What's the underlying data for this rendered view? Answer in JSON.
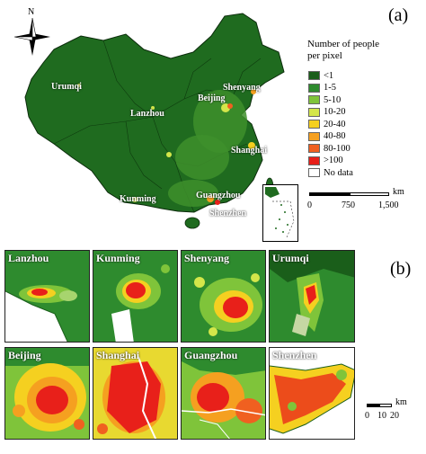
{
  "panels": {
    "a_label": "(a)",
    "b_label": "(b)"
  },
  "north_arrow": {
    "label": "N"
  },
  "legend": {
    "title_line1": "Number of people",
    "title_line2": "per pixel",
    "items": [
      {
        "label": "<1",
        "color": "#1a5e1a"
      },
      {
        "label": "1-5",
        "color": "#2e8b2e"
      },
      {
        "label": "5-10",
        "color": "#7fc43a"
      },
      {
        "label": "10-20",
        "color": "#d4e64a"
      },
      {
        "label": "20-40",
        "color": "#f5d020"
      },
      {
        "label": "40-80",
        "color": "#f5a020"
      },
      {
        "label": "80-100",
        "color": "#f06020"
      },
      {
        "label": ">100",
        "color": "#e8201a"
      },
      {
        "label": "No data",
        "color": "#ffffff"
      }
    ]
  },
  "scale_a": {
    "unit": "km",
    "ticks": [
      "0",
      "750",
      "1,500"
    ]
  },
  "scale_b": {
    "unit": "km",
    "ticks": [
      "0",
      "10",
      "20"
    ]
  },
  "cities_map": [
    "Urumqi",
    "Shenyang",
    "Beijing",
    "Lanzhou",
    "Shanghai",
    "Kunming",
    "Guangzhou",
    "Shenzhen"
  ],
  "thumbnails": [
    {
      "name": "Lanzhou"
    },
    {
      "name": "Kunming"
    },
    {
      "name": "Shenyang"
    },
    {
      "name": "Urumqi"
    },
    {
      "name": "Beijing"
    },
    {
      "name": "Shanghai"
    },
    {
      "name": "Guangzhou"
    },
    {
      "name": "Shenzhen"
    }
  ]
}
